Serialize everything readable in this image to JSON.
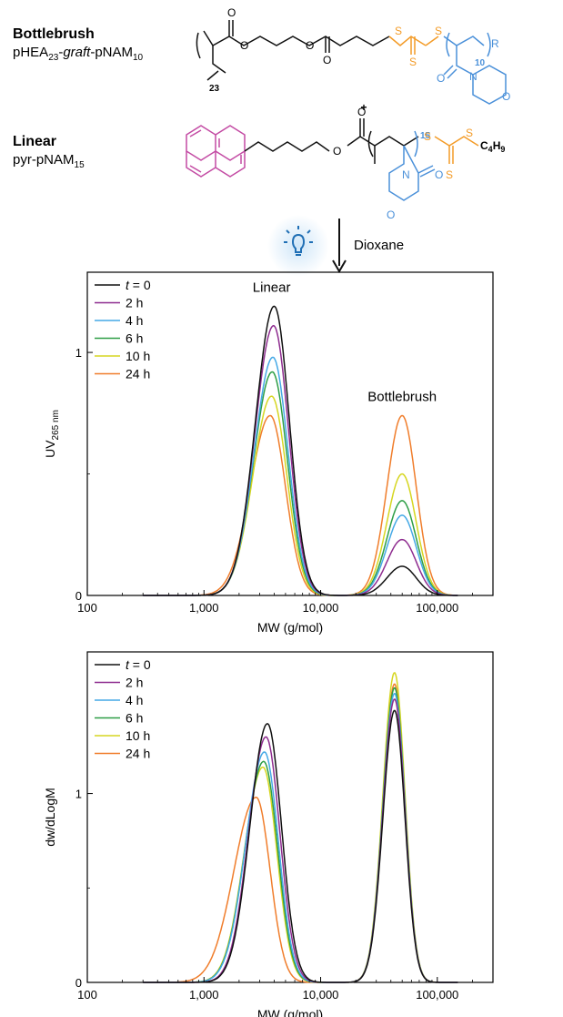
{
  "scheme": {
    "bottlebrush": {
      "title": "Bottlebrush",
      "formula_parts": [
        "pHEA",
        "23",
        "-",
        "graft",
        "-pNAM",
        "10"
      ]
    },
    "linear": {
      "title": "Linear",
      "formula_parts": [
        "pyr-pNAM",
        "15"
      ]
    },
    "plus": "+",
    "solvent": "Dioxane",
    "structure_labels": {
      "bb_backbone_n": "23",
      "bb_graft_n": "10",
      "bb_R": "R",
      "lin_n": "15",
      "lin_end_C": "C",
      "lin_end_H": "H",
      "lin_end_sub1": "4",
      "lin_end_sub2": "9",
      "O": "O",
      "S": "S",
      "N": "N"
    },
    "colors": {
      "black": "#111111",
      "orange": "#f39b27",
      "blue": "#4a90d9",
      "pyrene": "#c34aa3",
      "glow": "#cfe6f8"
    },
    "icon": "lightbulb-icon"
  },
  "chart_data": [
    {
      "type": "line",
      "title": "",
      "xlabel": "MW (g/mol)",
      "ylabel_parts": [
        "UV",
        "265 nm"
      ],
      "xscale": "log",
      "xlim": [
        100,
        300000
      ],
      "ylim": [
        0,
        1.33
      ],
      "xticks": [
        100,
        1000,
        10000,
        100000
      ],
      "xticklabels": [
        "100",
        "1,000",
        "10,000",
        "100,000"
      ],
      "yticks": [
        0,
        1
      ],
      "yticklabels": [
        "0",
        "1"
      ],
      "legend": {
        "placement": "top-left"
      },
      "annotations": [
        {
          "text": "Linear",
          "x": 3800,
          "y": 1.25
        },
        {
          "text": "Bottlebrush",
          "x": 50000,
          "y": 0.8
        }
      ],
      "series": [
        {
          "name": "t = 0",
          "name_parts": [
            "t",
            " = 0"
          ],
          "color": "#111111",
          "peaks": [
            {
              "mw": 4000,
              "h": 1.19,
              "sl": 0.16,
              "sr": 0.13
            },
            {
              "mw": 50000,
              "h": 0.12,
              "sl": 0.13,
              "sr": 0.12
            }
          ]
        },
        {
          "name": "2 h",
          "color": "#8e2c8f",
          "peaks": [
            {
              "mw": 3950,
              "h": 1.11,
              "sl": 0.16,
              "sr": 0.13
            },
            {
              "mw": 50000,
              "h": 0.23,
              "sl": 0.13,
              "sr": 0.12
            }
          ]
        },
        {
          "name": "4 h",
          "color": "#45a9e6",
          "peaks": [
            {
              "mw": 3900,
              "h": 0.98,
              "sl": 0.16,
              "sr": 0.13
            },
            {
              "mw": 50000,
              "h": 0.33,
              "sl": 0.13,
              "sr": 0.12
            }
          ]
        },
        {
          "name": "6 h",
          "color": "#2d9e46",
          "peaks": [
            {
              "mw": 3850,
              "h": 0.92,
              "sl": 0.16,
              "sr": 0.13
            },
            {
              "mw": 50000,
              "h": 0.39,
              "sl": 0.13,
              "sr": 0.12
            }
          ]
        },
        {
          "name": "10 h",
          "color": "#d6d620",
          "peaks": [
            {
              "mw": 3800,
              "h": 0.82,
              "sl": 0.16,
              "sr": 0.13
            },
            {
              "mw": 50000,
              "h": 0.5,
              "sl": 0.13,
              "sr": 0.12
            }
          ]
        },
        {
          "name": "24 h",
          "color": "#f07d2b",
          "peaks": [
            {
              "mw": 3700,
              "h": 0.74,
              "sl": 0.17,
              "sr": 0.13
            },
            {
              "mw": 50000,
              "h": 0.74,
              "sl": 0.13,
              "sr": 0.12
            }
          ]
        }
      ]
    },
    {
      "type": "line",
      "title": "",
      "xlabel": "MW (g/mol)",
      "ylabel": "dw/dLogM",
      "xscale": "log",
      "xlim": [
        100,
        300000
      ],
      "ylim": [
        0,
        1.75
      ],
      "xticks": [
        100,
        1000,
        10000,
        100000
      ],
      "xticklabels": [
        "100",
        "1,000",
        "10,000",
        "100,000"
      ],
      "yticks": [
        0,
        1
      ],
      "yticklabels": [
        "0",
        "1"
      ],
      "legend": {
        "placement": "top-left"
      },
      "series": [
        {
          "name": "t = 0",
          "name_parts": [
            "t",
            " = 0"
          ],
          "color": "#111111",
          "peaks": [
            {
              "mw": 3500,
              "h": 1.37,
              "sl": 0.15,
              "sr": 0.12
            },
            {
              "mw": 43000,
              "h": 1.44,
              "sl": 0.1,
              "sr": 0.09
            }
          ]
        },
        {
          "name": "2 h",
          "color": "#8e2c8f",
          "peaks": [
            {
              "mw": 3400,
              "h": 1.3,
              "sl": 0.15,
              "sr": 0.12
            },
            {
              "mw": 43000,
              "h": 1.5,
              "sl": 0.1,
              "sr": 0.09
            }
          ]
        },
        {
          "name": "4 h",
          "color": "#45a9e6",
          "peaks": [
            {
              "mw": 3300,
              "h": 1.22,
              "sl": 0.16,
              "sr": 0.12
            },
            {
              "mw": 43000,
              "h": 1.53,
              "sl": 0.1,
              "sr": 0.09
            }
          ]
        },
        {
          "name": "6 h",
          "color": "#2d9e46",
          "peaks": [
            {
              "mw": 3250,
              "h": 1.17,
              "sl": 0.16,
              "sr": 0.12
            },
            {
              "mw": 43000,
              "h": 1.56,
              "sl": 0.1,
              "sr": 0.09
            }
          ]
        },
        {
          "name": "10 h",
          "color": "#d6d620",
          "peaks": [
            {
              "mw": 3200,
              "h": 1.14,
              "sl": 0.16,
              "sr": 0.12
            },
            {
              "mw": 43000,
              "h": 1.64,
              "sl": 0.1,
              "sr": 0.09
            }
          ]
        },
        {
          "name": "24 h",
          "color": "#f07d2b",
          "peaks": [
            {
              "mw": 2800,
              "h": 0.98,
              "sl": 0.19,
              "sr": 0.12
            },
            {
              "mw": 43000,
              "h": 1.58,
              "sl": 0.1,
              "sr": 0.09
            }
          ]
        }
      ]
    }
  ]
}
